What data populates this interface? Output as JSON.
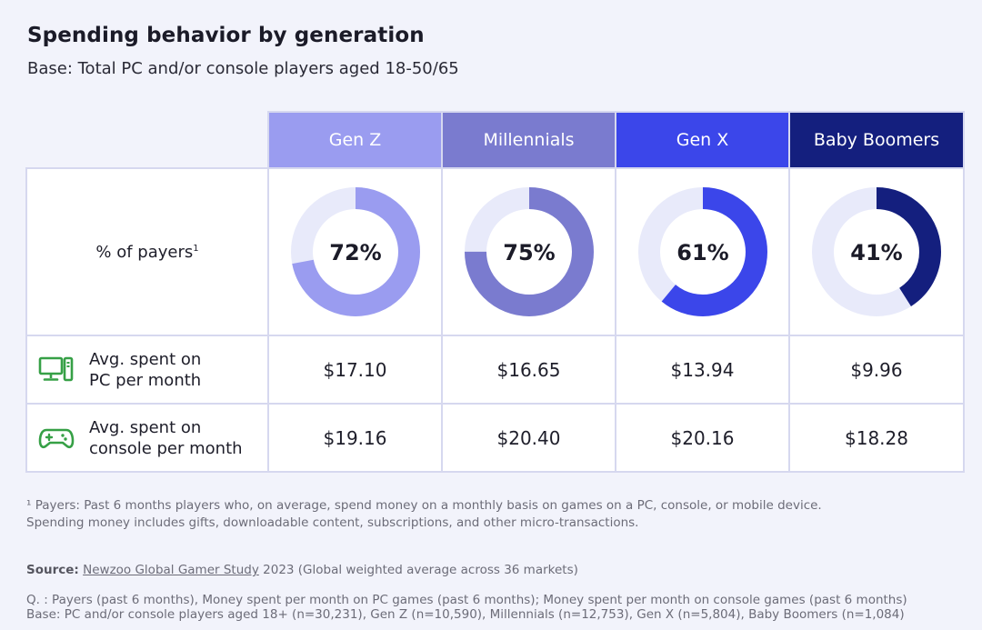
{
  "title": "Spending behavior by generation",
  "subtitle": "Base: Total PC and/or console players aged 18-50/65",
  "colors": {
    "gen_z": "#9a9cf0",
    "millennials": "#7a7bcf",
    "gen_x": "#3b46ea",
    "baby_boomers": "#141f7e",
    "track": "#e8eafa",
    "icon_green": "#36a046"
  },
  "chart_data": {
    "type": "table",
    "title": "Spending behavior by generation",
    "columns": [
      "Gen Z",
      "Millennials",
      "Gen X",
      "Baby Boomers"
    ],
    "rows": [
      {
        "label": "% of payers",
        "superscript": "1",
        "values": [
          72,
          75,
          61,
          41
        ],
        "display": [
          "72%",
          "75%",
          "61%",
          "41%"
        ],
        "chart": "donut"
      },
      {
        "label_line1": "Avg. spent on",
        "label_line2": "PC per month",
        "icon": "pc-icon",
        "display": [
          "$17.10",
          "$16.65",
          "$13.94",
          "$9.96"
        ],
        "values": [
          17.1,
          16.65,
          13.94,
          9.96
        ]
      },
      {
        "label_line1": "Avg. spent on",
        "label_line2": "console per month",
        "icon": "gamepad-icon",
        "display": [
          "$19.16",
          "$20.40",
          "$20.16",
          "$18.28"
        ],
        "values": [
          19.16,
          20.4,
          20.16,
          18.28
        ]
      }
    ]
  },
  "footnote": {
    "marker": "¹",
    "line1": "Payers: Past 6 months players who, on average, spend money on a monthly basis on games on a PC, console, or mobile device.",
    "line2": "Spending money includes gifts, downloadable content, subscriptions, and other micro-transactions."
  },
  "source": {
    "label": "Source:",
    "link": "Newzoo Global Gamer Study",
    "rest": "2023 (Global weighted average across 36 markets)"
  },
  "notes": {
    "q": "Q. : Payers (past 6 months), Money spent per month on PC games (past 6 months); Money spent per month on console games (past 6 months)",
    "base": "Base: PC and/or console players aged 18+ (n=30,231), Gen Z (n=10,590), Millennials (n=12,753), Gen X (n=5,804), Baby Boomers (n=1,084)"
  }
}
